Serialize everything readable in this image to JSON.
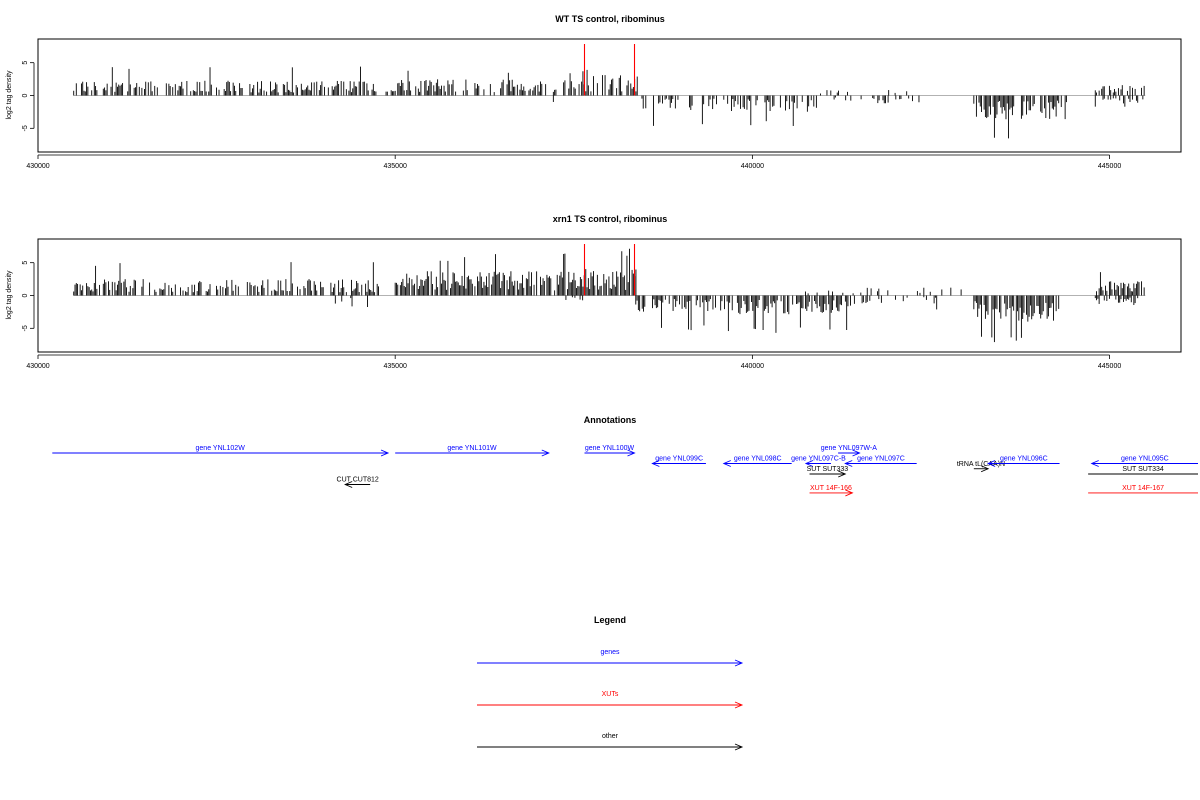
{
  "chart_data": [
    {
      "type": "bar",
      "title": "WT TS control, ribominus",
      "xlabel": "",
      "ylabel": "log2 tag density",
      "xlim": [
        430000,
        446000
      ],
      "ylim": [
        -8,
        8
      ],
      "xticks": [
        430000,
        435000,
        440000,
        445000
      ],
      "yticks": [
        -5,
        0,
        5
      ],
      "grid": false,
      "highlight_lines": [
        {
          "x": 437650,
          "color": "#ff0000"
        },
        {
          "x": 438350,
          "color": "#ff0000"
        }
      ],
      "bar_color": "#000000",
      "baseline_color": "#999999",
      "density_profile": {
        "positive_segments": [
          {
            "start": 430500,
            "end": 434800,
            "mean": 1.8,
            "max": 4.4,
            "density": 0.55
          },
          {
            "start": 434800,
            "end": 435000,
            "mean": 0.8,
            "max": 1.5,
            "density": 0.2
          },
          {
            "start": 435000,
            "end": 437650,
            "mean": 2.0,
            "max": 4.0,
            "density": 0.6
          },
          {
            "start": 437650,
            "end": 438400,
            "mean": 2.5,
            "max": 4.7,
            "density": 0.7
          },
          {
            "start": 440900,
            "end": 442200,
            "mean": 0.7,
            "max": 1.5,
            "density": 0.08
          },
          {
            "start": 444800,
            "end": 445500,
            "mean": 1.5,
            "max": 3.0,
            "density": 0.5
          }
        ],
        "negative_segments": [
          {
            "start": 433500,
            "end": 434000,
            "mean": -1.2,
            "min": -2.5,
            "density": 0.04
          },
          {
            "start": 436800,
            "end": 437400,
            "mean": -1.2,
            "min": -2.7,
            "density": 0.05
          },
          {
            "start": 438400,
            "end": 439500,
            "mean": -1.8,
            "min": -4.7,
            "density": 0.4
          },
          {
            "start": 439600,
            "end": 441000,
            "mean": -2.0,
            "min": -4.8,
            "density": 0.5
          },
          {
            "start": 441000,
            "end": 442400,
            "mean": -1.0,
            "min": -2.3,
            "density": 0.15
          },
          {
            "start": 443100,
            "end": 444400,
            "mean": -3.0,
            "min": -7.2,
            "density": 0.75
          },
          {
            "start": 444800,
            "end": 445500,
            "mean": -1.0,
            "min": -2.0,
            "density": 0.3
          }
        ]
      }
    },
    {
      "type": "bar",
      "title": "xrn1 TS control, ribominus",
      "xlabel": "",
      "ylabel": "log2 tag density",
      "xlim": [
        430000,
        446000
      ],
      "ylim": [
        -8,
        8
      ],
      "xticks": [
        430000,
        435000,
        440000,
        445000
      ],
      "yticks": [
        -5,
        0,
        5
      ],
      "grid": false,
      "highlight_lines": [
        {
          "x": 437650,
          "color": "#ff0000"
        },
        {
          "x": 438350,
          "color": "#ff0000"
        }
      ],
      "bar_color": "#000000",
      "baseline_color": "#999999",
      "density_profile": {
        "positive_segments": [
          {
            "start": 430500,
            "end": 434800,
            "mean": 2.0,
            "max": 5.2,
            "density": 0.6
          },
          {
            "start": 435000,
            "end": 437650,
            "mean": 3.0,
            "max": 6.5,
            "density": 0.9
          },
          {
            "start": 437650,
            "end": 438400,
            "mean": 3.3,
            "max": 7.3,
            "density": 0.9
          },
          {
            "start": 440600,
            "end": 443000,
            "mean": 1.0,
            "max": 3.0,
            "density": 0.12
          },
          {
            "start": 444800,
            "end": 445500,
            "mean": 2.0,
            "max": 4.2,
            "density": 0.8
          }
        ],
        "negative_segments": [
          {
            "start": 434000,
            "end": 434700,
            "mean": -1.5,
            "min": -4.0,
            "density": 0.15
          },
          {
            "start": 437300,
            "end": 437650,
            "mean": -1.0,
            "min": -2.0,
            "density": 0.1
          },
          {
            "start": 438350,
            "end": 439700,
            "mean": -2.0,
            "min": -5.6,
            "density": 0.6
          },
          {
            "start": 439700,
            "end": 441500,
            "mean": -2.3,
            "min": -5.8,
            "density": 0.7
          },
          {
            "start": 441500,
            "end": 442600,
            "mean": -1.0,
            "min": -2.5,
            "density": 0.25
          },
          {
            "start": 443100,
            "end": 444300,
            "mean": -3.2,
            "min": -7.5,
            "density": 0.85
          },
          {
            "start": 444800,
            "end": 445500,
            "mean": -1.2,
            "min": -3.0,
            "density": 0.5
          }
        ]
      }
    }
  ],
  "annotations": {
    "title": "Annotations",
    "features": [
      {
        "label": "gene YNL102W",
        "start": 430200,
        "end": 434900,
        "strand": "+",
        "row": 0,
        "color": "#0000ff"
      },
      {
        "label": "gene YNL101W",
        "start": 435000,
        "end": 437150,
        "strand": "+",
        "row": 0,
        "color": "#0000ff"
      },
      {
        "label": "gene YNL100W",
        "start": 437650,
        "end": 438350,
        "strand": "+",
        "row": 0,
        "color": "#0000ff"
      },
      {
        "label": "gene YNL099C",
        "start": 438600,
        "end": 439350,
        "strand": "-",
        "row": 1,
        "color": "#0000ff"
      },
      {
        "label": "gene YNL098C",
        "start": 439600,
        "end": 440550,
        "strand": "-",
        "row": 1,
        "color": "#0000ff"
      },
      {
        "label": "gene YNL097C-B",
        "start": 440750,
        "end": 441100,
        "strand": "-",
        "row": 1,
        "color": "#0000ff"
      },
      {
        "label": "gene YNL097W-A",
        "start": 441200,
        "end": 441500,
        "strand": "+",
        "row": 0,
        "color": "#0000ff"
      },
      {
        "label": "gene YNL097C",
        "start": 441300,
        "end": 442300,
        "strand": "-",
        "row": 1,
        "color": "#0000ff"
      },
      {
        "label": "tRNA tL(CAA)N",
        "start": 443100,
        "end": 443300,
        "strand": "+",
        "row": 1.5,
        "color": "#000000"
      },
      {
        "label": "gene YNL096C",
        "start": 443300,
        "end": 444300,
        "strand": "-",
        "row": 1,
        "color": "#0000ff"
      },
      {
        "label": "gene YNL095C",
        "start": 444750,
        "end": 447000,
        "strand": "-",
        "row": 1,
        "color": "#0000ff"
      },
      {
        "label": "SUT SUT333",
        "start": 440800,
        "end": 441300,
        "strand": "+",
        "row": 2,
        "color": "#000000"
      },
      {
        "label": "SUT SUT334",
        "start": 444700,
        "end": 447000,
        "strand": "none",
        "row": 2,
        "color": "#000000"
      },
      {
        "label": "CUT CUT812",
        "start": 434300,
        "end": 434650,
        "strand": "-",
        "row": 3,
        "color": "#000000"
      },
      {
        "label": "XUT 14F-166",
        "start": 440800,
        "end": 441400,
        "strand": "+",
        "row": 3.8,
        "color": "#ff0000"
      },
      {
        "label": "XUT 14F-167",
        "start": 444700,
        "end": 447000,
        "strand": "none",
        "row": 3.8,
        "color": "#ff0000"
      }
    ]
  },
  "legend": {
    "title": "Legend",
    "items": [
      {
        "label": "genes",
        "color": "#0000ff"
      },
      {
        "label": "XUTs",
        "color": "#ff0000"
      },
      {
        "label": "other",
        "color": "#000000"
      }
    ]
  }
}
